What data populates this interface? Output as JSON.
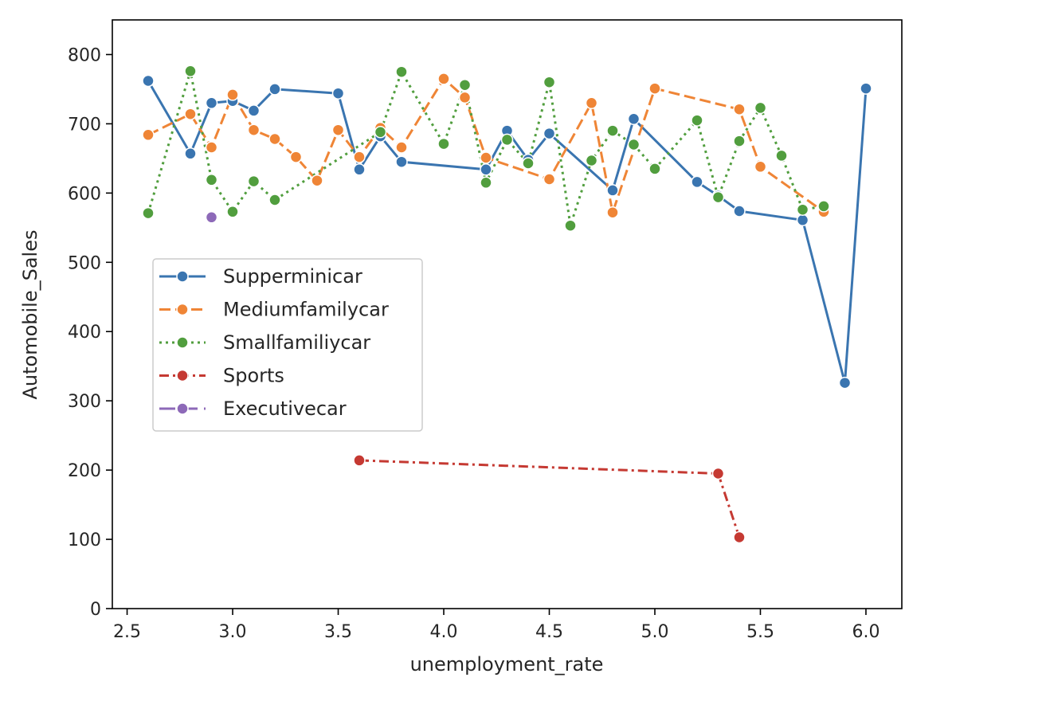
{
  "chart_data": {
    "type": "line",
    "title": "",
    "xlabel": "unemployment_rate",
    "ylabel": "Automobile_Sales",
    "xlim": [
      2.43,
      6.17
    ],
    "ylim": [
      0,
      850
    ],
    "xticks": [
      "2.5",
      "3.0",
      "3.5",
      "4.0",
      "4.5",
      "5.0",
      "5.5",
      "6.0"
    ],
    "yticks": [
      "0",
      "100",
      "200",
      "300",
      "400",
      "500",
      "600",
      "700",
      "800"
    ],
    "grid": false,
    "legend_position": "center-left",
    "series": [
      {
        "name": "Supperminicar",
        "color": "#3a75b0",
        "dash": "solid",
        "points": [
          [
            2.6,
            762
          ],
          [
            2.8,
            657
          ],
          [
            2.9,
            730
          ],
          [
            3.0,
            733
          ],
          [
            3.1,
            719
          ],
          [
            3.2,
            750
          ],
          [
            3.5,
            744
          ],
          [
            3.6,
            634
          ],
          [
            3.7,
            682
          ],
          [
            3.8,
            645
          ],
          [
            4.2,
            634
          ],
          [
            4.3,
            690
          ],
          [
            4.4,
            648
          ],
          [
            4.5,
            686
          ],
          [
            4.8,
            604
          ],
          [
            4.9,
            707
          ],
          [
            5.2,
            616
          ],
          [
            5.3,
            596
          ],
          [
            5.4,
            574
          ],
          [
            5.7,
            561
          ],
          [
            5.9,
            326
          ],
          [
            6.0,
            751
          ]
        ]
      },
      {
        "name": "Mediumfamilycar",
        "color": "#ef8536",
        "dash": "dashed",
        "points": [
          [
            2.6,
            684
          ],
          [
            2.8,
            714
          ],
          [
            2.9,
            666
          ],
          [
            3.0,
            742
          ],
          [
            3.1,
            691
          ],
          [
            3.2,
            678
          ],
          [
            3.3,
            652
          ],
          [
            3.4,
            618
          ],
          [
            3.5,
            691
          ],
          [
            3.6,
            652
          ],
          [
            3.7,
            694
          ],
          [
            3.8,
            666
          ],
          [
            4.0,
            765
          ],
          [
            4.1,
            738
          ],
          [
            4.2,
            651
          ],
          [
            4.5,
            620
          ],
          [
            4.7,
            730
          ],
          [
            4.8,
            572
          ],
          [
            5.0,
            751
          ],
          [
            5.4,
            721
          ],
          [
            5.5,
            638
          ],
          [
            5.8,
            573
          ]
        ]
      },
      {
        "name": "Smallfamiliycar",
        "color": "#519e3e",
        "dash": "dotted",
        "points": [
          [
            2.6,
            571
          ],
          [
            2.8,
            776
          ],
          [
            2.9,
            619
          ],
          [
            3.0,
            573
          ],
          [
            3.1,
            617
          ],
          [
            3.2,
            590
          ],
          [
            3.7,
            688
          ],
          [
            3.8,
            775
          ],
          [
            4.0,
            671
          ],
          [
            4.1,
            756
          ],
          [
            4.2,
            615
          ],
          [
            4.3,
            677
          ],
          [
            4.4,
            643
          ],
          [
            4.5,
            760
          ],
          [
            4.6,
            553
          ],
          [
            4.7,
            647
          ],
          [
            4.8,
            690
          ],
          [
            4.9,
            670
          ],
          [
            5.0,
            635
          ],
          [
            5.2,
            705
          ],
          [
            5.3,
            594
          ],
          [
            5.4,
            675
          ],
          [
            5.5,
            723
          ],
          [
            5.6,
            654
          ],
          [
            5.7,
            576
          ],
          [
            5.8,
            581
          ]
        ]
      },
      {
        "name": "Sports",
        "color": "#c53932",
        "dash": "dashdot",
        "points": [
          [
            3.6,
            214
          ],
          [
            5.3,
            195
          ],
          [
            5.4,
            103
          ]
        ]
      },
      {
        "name": "Executivecar",
        "color": "#8d69b8",
        "dash": "longdash",
        "points": [
          [
            2.9,
            565
          ]
        ]
      }
    ]
  }
}
